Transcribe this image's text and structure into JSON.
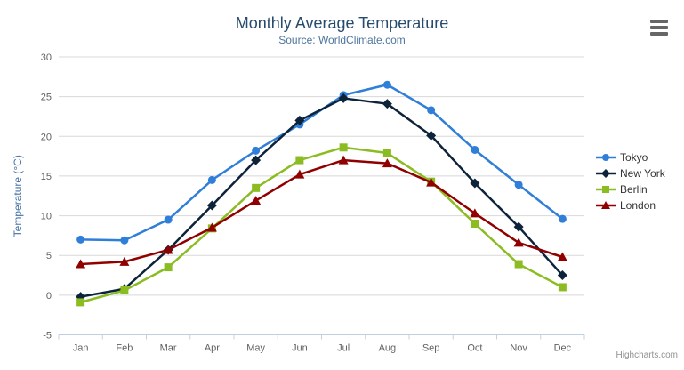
{
  "header": {
    "title": "Monthly Average Temperature",
    "subtitle": "Source: WorldClimate.com"
  },
  "credits": "Highcharts.com",
  "icons": {
    "export_menu": "hamburger-icon"
  },
  "styles": {
    "title_color": "#274b6d",
    "subtitle_color": "#4d759e",
    "tick_label_color": "#606060",
    "axis_title_color": "#4572a7",
    "grid_color": "#d8d8d8",
    "axis_line_color": "#c0d0e0",
    "legend_text_color": "#333333",
    "credits_color": "#909090"
  },
  "chart_data": {
    "type": "line",
    "title": "Monthly Average Temperature",
    "subtitle": "Source: WorldClimate.com",
    "xlabel": "",
    "ylabel": "Temperature (°C)",
    "ylim": [
      -5,
      30
    ],
    "ytick_interval": 5,
    "grid": true,
    "legend_position": "right",
    "categories": [
      "Jan",
      "Feb",
      "Mar",
      "Apr",
      "May",
      "Jun",
      "Jul",
      "Aug",
      "Sep",
      "Oct",
      "Nov",
      "Dec"
    ],
    "series": [
      {
        "name": "Tokyo",
        "color": "#2f7ed8",
        "marker": "circle",
        "values": [
          7.0,
          6.9,
          9.5,
          14.5,
          18.2,
          21.5,
          25.2,
          26.5,
          23.3,
          18.3,
          13.9,
          9.6
        ]
      },
      {
        "name": "New York",
        "color": "#0d233a",
        "marker": "diamond",
        "values": [
          -0.2,
          0.8,
          5.7,
          11.3,
          17.0,
          22.0,
          24.8,
          24.1,
          20.1,
          14.1,
          8.6,
          2.5
        ]
      },
      {
        "name": "Berlin",
        "color": "#8bbc21",
        "marker": "square",
        "values": [
          -0.9,
          0.6,
          3.5,
          8.4,
          13.5,
          17.0,
          18.6,
          17.9,
          14.3,
          9.0,
          3.9,
          1.0
        ]
      },
      {
        "name": "London",
        "color": "#910000",
        "marker": "triangle",
        "values": [
          3.9,
          4.2,
          5.7,
          8.5,
          11.9,
          15.2,
          17.0,
          16.6,
          14.2,
          10.3,
          6.6,
          4.8
        ]
      }
    ]
  }
}
